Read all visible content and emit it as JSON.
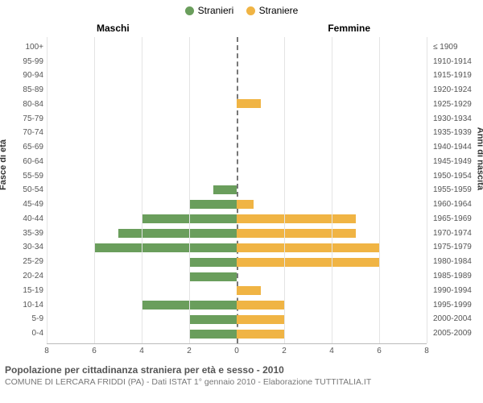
{
  "legend": {
    "male": {
      "label": "Stranieri",
      "color": "#6a9e5c"
    },
    "female": {
      "label": "Straniere",
      "color": "#f0b444"
    }
  },
  "column_titles": {
    "left": "Maschi",
    "right": "Femmine"
  },
  "axis_titles": {
    "left": "Fasce di età",
    "right": "Anni di nascita"
  },
  "caption": {
    "title": "Popolazione per cittadinanza straniera per età e sesso - 2010",
    "subtitle": "COMUNE DI LERCARA FRIDDI (PA) - Dati ISTAT 1° gennaio 2010 - Elaborazione TUTTITALIA.IT"
  },
  "chart": {
    "type": "population-pyramid",
    "xmax": 8,
    "xticks": [
      8,
      6,
      4,
      2,
      0,
      2,
      4,
      6,
      8
    ],
    "bar_color_male": "#6a9e5c",
    "bar_color_female": "#f0b444",
    "grid_color": "#e4e4e4",
    "center_line_color": "#777777",
    "background_color": "#ffffff",
    "rows": [
      {
        "age": "100+",
        "birth": "≤ 1909",
        "m": 0,
        "f": 0
      },
      {
        "age": "95-99",
        "birth": "1910-1914",
        "m": 0,
        "f": 0
      },
      {
        "age": "90-94",
        "birth": "1915-1919",
        "m": 0,
        "f": 0
      },
      {
        "age": "85-89",
        "birth": "1920-1924",
        "m": 0,
        "f": 0
      },
      {
        "age": "80-84",
        "birth": "1925-1929",
        "m": 0,
        "f": 1
      },
      {
        "age": "75-79",
        "birth": "1930-1934",
        "m": 0,
        "f": 0
      },
      {
        "age": "70-74",
        "birth": "1935-1939",
        "m": 0,
        "f": 0
      },
      {
        "age": "65-69",
        "birth": "1940-1944",
        "m": 0,
        "f": 0
      },
      {
        "age": "60-64",
        "birth": "1945-1949",
        "m": 0,
        "f": 0
      },
      {
        "age": "55-59",
        "birth": "1950-1954",
        "m": 0,
        "f": 0
      },
      {
        "age": "50-54",
        "birth": "1955-1959",
        "m": 1,
        "f": 0
      },
      {
        "age": "45-49",
        "birth": "1960-1964",
        "m": 2,
        "f": 0.7
      },
      {
        "age": "40-44",
        "birth": "1965-1969",
        "m": 4,
        "f": 5
      },
      {
        "age": "35-39",
        "birth": "1970-1974",
        "m": 5,
        "f": 5
      },
      {
        "age": "30-34",
        "birth": "1975-1979",
        "m": 6,
        "f": 6
      },
      {
        "age": "25-29",
        "birth": "1980-1984",
        "m": 2,
        "f": 6
      },
      {
        "age": "20-24",
        "birth": "1985-1989",
        "m": 2,
        "f": 0
      },
      {
        "age": "15-19",
        "birth": "1990-1994",
        "m": 0,
        "f": 1
      },
      {
        "age": "10-14",
        "birth": "1995-1999",
        "m": 4,
        "f": 2
      },
      {
        "age": "5-9",
        "birth": "2000-2004",
        "m": 2,
        "f": 2
      },
      {
        "age": "0-4",
        "birth": "2005-2009",
        "m": 2,
        "f": 2
      }
    ]
  }
}
